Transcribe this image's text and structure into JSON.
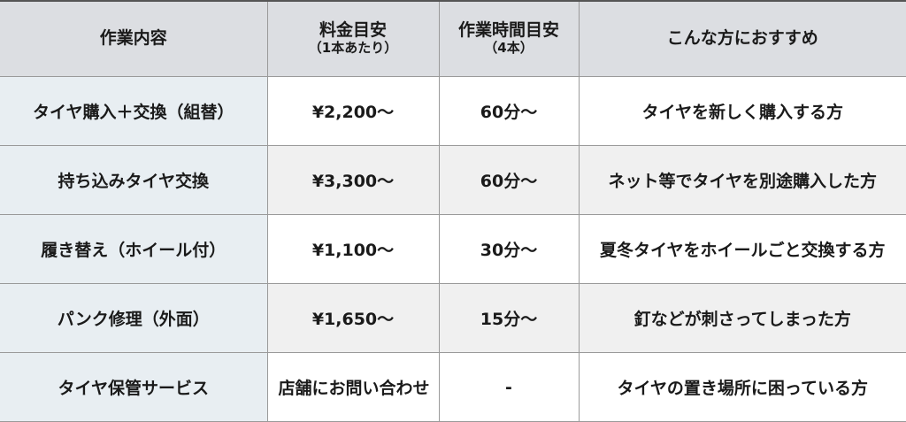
{
  "headers": [
    {
      "main": "作業内容",
      "sub": ""
    },
    {
      "main": "料金目安",
      "sub": "（1本あたり）"
    },
    {
      "main": "作業時間目安",
      "sub": "（4本）"
    },
    {
      "main": "こんな方におすすめ",
      "sub": ""
    }
  ],
  "rows": [
    [
      "タイヤ購入＋交換（組替）",
      "¥2,200〜",
      "60分〜",
      "タイヤを新しく購入する方"
    ],
    [
      "持ち込みタイヤ交換",
      "¥3,300〜",
      "60分〜",
      "ネット等でタイヤを別途購入した方"
    ],
    [
      "履き替え（ホイール付）",
      "¥1,100〜",
      "30分〜",
      "夏冬タイヤをホイールごと交換する方"
    ],
    [
      "パンク修理（外面）",
      "¥1,650〜",
      "15分〜",
      "釘などが刺さってしまった方"
    ],
    [
      "タイヤ保管サービス",
      "店舗にお問い合わせ",
      "-",
      "タイヤの置き場所に困っている方"
    ]
  ],
  "colors": {
    "header_bg": "#dcdee2",
    "first_col_bg": "#e8eef2",
    "alt_row_bg": "#f0f0f0"
  }
}
